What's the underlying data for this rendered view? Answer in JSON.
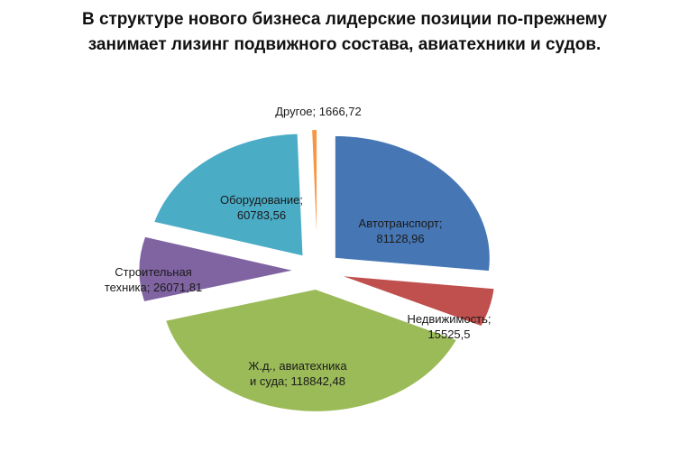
{
  "title": {
    "line1": "В структуре нового бизнеса лидерские позиции по-прежнему",
    "line2": "занимает лизинг подвижного состава, авиатехники и судов."
  },
  "chart_data": {
    "type": "pie",
    "title": "В структуре нового бизнеса лидерские позиции по-прежнему занимает лизинг подвижного состава, авиатехники и судов.",
    "exploded": true,
    "slices": [
      {
        "label": "Автотранспорт",
        "value": 81128.96,
        "value_text": "81128,96",
        "color": "#4677b4"
      },
      {
        "label": "Недвижимость",
        "value": 15525.5,
        "value_text": "15525,5",
        "color": "#c0504d"
      },
      {
        "label": "Ж.д., авиатехника и суда",
        "value": 118842.48,
        "value_text": "118842,48",
        "color": "#9bbb59"
      },
      {
        "label": "Строительная техника",
        "value": 26071.81,
        "value_text": "26071,81",
        "color": "#8064a2"
      },
      {
        "label": "Оборудование",
        "value": 60783.56,
        "value_text": "60783,56",
        "color": "#4bacc6"
      },
      {
        "label": "Другое",
        "value": 1666.72,
        "value_text": "1666,72",
        "color": "#f79646"
      }
    ],
    "data_labels": [
      {
        "lines": [
          "Автотранспорт;",
          "81128,96"
        ]
      },
      {
        "lines": [
          "Недвижимость;",
          "15525,5"
        ]
      },
      {
        "lines": [
          "Ж.д., авиатехника",
          "и суда; 118842,48"
        ]
      },
      {
        "lines": [
          "Строительная",
          "техника; 26071,81"
        ]
      },
      {
        "lines": [
          "Оборудование;",
          "60783,56"
        ]
      },
      {
        "lines": [
          "Другое; 1666,72"
        ]
      }
    ]
  }
}
